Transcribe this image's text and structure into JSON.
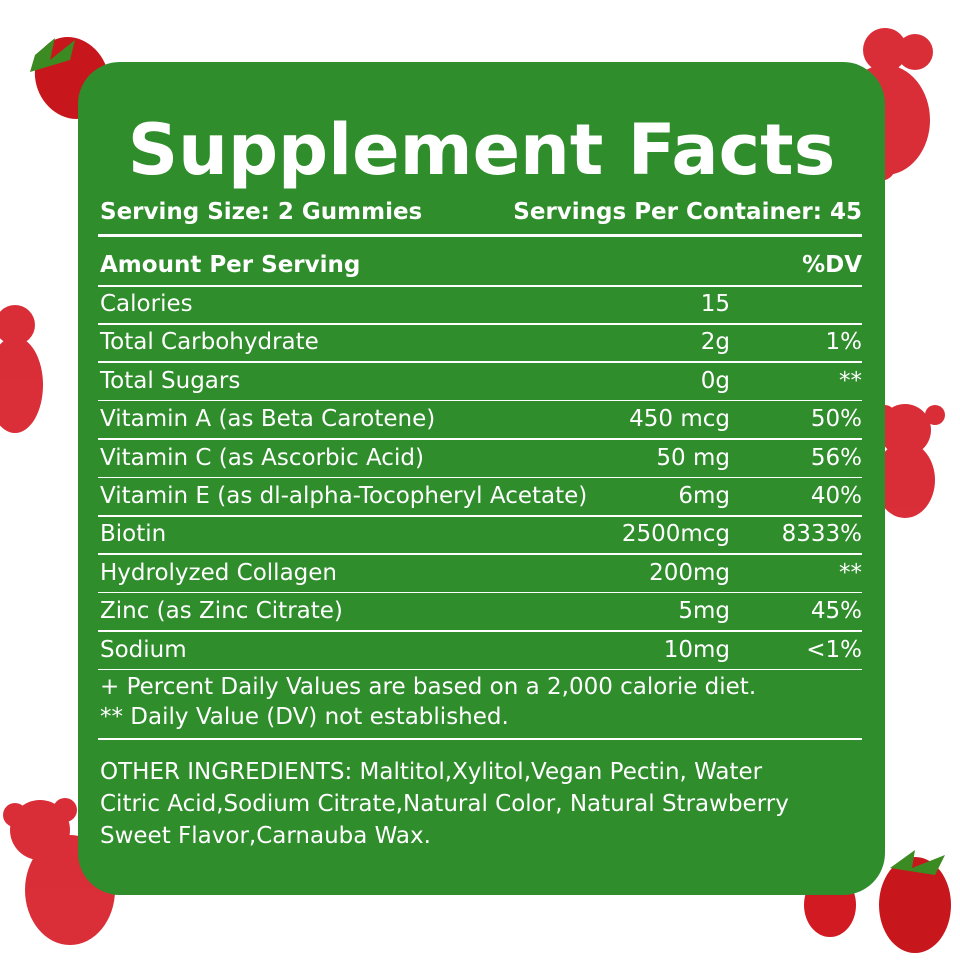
{
  "title": "Supplement Facts",
  "serving_size": "Serving Size: 2 Gummies",
  "servings_per_container": "Servings Per Container: 45",
  "header": {
    "amount": "Amount Per Serving",
    "dv": "%DV"
  },
  "rows": [
    [
      "Calories",
      "15",
      ""
    ],
    [
      "Total Carbohydrate",
      "2g",
      "1%"
    ],
    [
      "Total Sugars",
      "0g",
      "**"
    ],
    [
      "Vitamin A (as Beta Carotene)",
      "450 mcg",
      "50%"
    ],
    [
      "Vitamin C (as Ascorbic Acid)",
      "50 mg",
      "56%"
    ],
    [
      "Vitamin E (as dl-alpha-Tocopheryl Acetate)",
      "6mg",
      "40%"
    ],
    [
      "Biotin",
      "2500mcg",
      "8333%"
    ],
    [
      "Hydrolyzed Collagen",
      "200mg",
      "**"
    ],
    [
      "Zinc (as Zinc Citrate)",
      "5mg",
      "45%"
    ],
    [
      "Sodium",
      "10mg",
      "<1%"
    ]
  ],
  "footnotes": [
    "+ Percent Daily Values are based on a 2,000 calorie diet.",
    "** Daily Value (DV) not established."
  ],
  "other_ingredients": [
    "OTHER INGREDIENTS: Maltitol,Xylitol,Vegan Pectin, Water",
    "Citric Acid,Sodium Citrate,Natural Color, Natural Strawberry",
    "Sweet Flavor,Carnauba Wax."
  ]
}
